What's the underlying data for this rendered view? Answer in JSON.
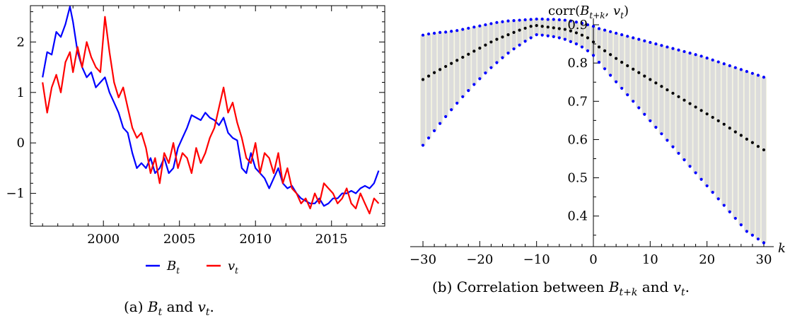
{
  "chart_data": [
    {
      "type": "line",
      "caption": "(a) B_t and v_t.",
      "x_ticks": [
        2000,
        2005,
        2010,
        2015
      ],
      "y_ticks": [
        -1,
        0,
        1,
        2
      ],
      "xlim": [
        1995.2,
        2018.5
      ],
      "ylim": [
        -1.65,
        2.72
      ],
      "legend": {
        "position": "bottom-center",
        "entries": [
          "B_t",
          "v_t"
        ]
      },
      "series": [
        {
          "name": "B_t",
          "color": "#0000ff",
          "x": [
            1996.0,
            1996.3,
            1996.6,
            1996.9,
            1997.2,
            1997.5,
            1997.8,
            1998.0,
            1998.3,
            1998.6,
            1998.9,
            1999.2,
            1999.5,
            1999.8,
            2000.1,
            2000.4,
            2000.7,
            2001.0,
            2001.3,
            2001.6,
            2001.9,
            2002.2,
            2002.5,
            2002.8,
            2003.1,
            2003.4,
            2003.7,
            2004.0,
            2004.3,
            2004.6,
            2004.9,
            2005.2,
            2005.5,
            2005.8,
            2006.1,
            2006.4,
            2006.7,
            2007.0,
            2007.3,
            2007.6,
            2007.9,
            2008.2,
            2008.5,
            2008.8,
            2009.1,
            2009.4,
            2009.7,
            2010.0,
            2010.3,
            2010.6,
            2010.9,
            2011.2,
            2011.5,
            2011.8,
            2012.1,
            2012.4,
            2012.7,
            2013.0,
            2013.3,
            2013.6,
            2013.9,
            2014.2,
            2014.5,
            2014.8,
            2015.1,
            2015.4,
            2015.7,
            2016.0,
            2016.3,
            2016.6,
            2016.9,
            2017.2,
            2017.5,
            2017.8,
            2018.1
          ],
          "y": [
            1.3,
            1.8,
            1.75,
            2.2,
            2.1,
            2.35,
            2.7,
            2.4,
            1.8,
            1.5,
            1.3,
            1.4,
            1.1,
            1.2,
            1.3,
            1.0,
            0.8,
            0.6,
            0.3,
            0.2,
            -0.2,
            -0.5,
            -0.4,
            -0.5,
            -0.3,
            -0.6,
            -0.5,
            -0.3,
            -0.6,
            -0.5,
            -0.1,
            0.1,
            0.3,
            0.55,
            0.5,
            0.45,
            0.6,
            0.5,
            0.45,
            0.35,
            0.5,
            0.2,
            0.1,
            0.05,
            -0.5,
            -0.6,
            -0.2,
            -0.5,
            -0.6,
            -0.7,
            -0.9,
            -0.7,
            -0.5,
            -0.8,
            -0.9,
            -0.85,
            -1.0,
            -1.1,
            -1.15,
            -1.2,
            -1.2,
            -1.1,
            -1.25,
            -1.2,
            -1.1,
            -1.1,
            -1.0,
            -1.0,
            -0.95,
            -1.0,
            -0.9,
            -0.85,
            -0.9,
            -0.8,
            -0.55
          ]
        },
        {
          "name": "v_t",
          "color": "#ff0000",
          "x": [
            1996.0,
            1996.3,
            1996.6,
            1996.9,
            1997.2,
            1997.5,
            1997.8,
            1998.0,
            1998.3,
            1998.6,
            1998.9,
            1999.2,
            1999.5,
            1999.8,
            2000.1,
            2000.4,
            2000.7,
            2001.0,
            2001.3,
            2001.6,
            2001.9,
            2002.2,
            2002.5,
            2002.8,
            2003.1,
            2003.4,
            2003.7,
            2004.0,
            2004.3,
            2004.6,
            2004.9,
            2005.2,
            2005.5,
            2005.8,
            2006.1,
            2006.4,
            2006.7,
            2007.0,
            2007.3,
            2007.6,
            2007.9,
            2008.2,
            2008.5,
            2008.8,
            2009.1,
            2009.4,
            2009.7,
            2010.0,
            2010.3,
            2010.6,
            2010.9,
            2011.2,
            2011.5,
            2011.8,
            2012.1,
            2012.4,
            2012.7,
            2013.0,
            2013.3,
            2013.6,
            2013.9,
            2014.2,
            2014.5,
            2014.8,
            2015.1,
            2015.4,
            2015.7,
            2016.0,
            2016.3,
            2016.6,
            2016.9,
            2017.2,
            2017.5,
            2017.8,
            2018.1
          ],
          "y": [
            1.2,
            0.6,
            1.1,
            1.35,
            1.0,
            1.6,
            1.8,
            1.4,
            1.9,
            1.5,
            2.0,
            1.7,
            1.5,
            1.4,
            2.5,
            1.8,
            1.2,
            0.9,
            1.1,
            0.7,
            0.3,
            0.1,
            0.2,
            -0.1,
            -0.6,
            -0.3,
            -0.8,
            -0.2,
            -0.4,
            0.0,
            -0.5,
            -0.2,
            -0.3,
            -0.6,
            -0.1,
            -0.4,
            -0.2,
            0.1,
            0.3,
            0.7,
            1.1,
            0.6,
            0.8,
            0.4,
            0.1,
            -0.3,
            -0.4,
            0.0,
            -0.6,
            -0.2,
            -0.3,
            -0.6,
            -0.2,
            -0.8,
            -0.5,
            -0.9,
            -1.0,
            -1.2,
            -1.1,
            -1.3,
            -1.0,
            -1.2,
            -0.8,
            -0.9,
            -1.0,
            -1.2,
            -1.1,
            -0.9,
            -1.2,
            -1.3,
            -1.0,
            -1.2,
            -1.4,
            -1.1,
            -1.2
          ]
        }
      ]
    },
    {
      "type": "scatter",
      "caption": "(b) Correlation between B_{t+k} and v_t.",
      "ylabel": "corr(B_{t+k}, v_t)",
      "xlabel": "k",
      "x_ticks": [
        -30,
        -20,
        -10,
        0,
        10,
        20,
        30
      ],
      "y_ticks": [
        0.4,
        0.5,
        0.6,
        0.7,
        0.8,
        0.9
      ],
      "xlim": [
        -31,
        31
      ],
      "ylim": [
        0.32,
        0.95
      ],
      "k": [
        -30,
        -29,
        -28,
        -27,
        -26,
        -25,
        -24,
        -23,
        -22,
        -21,
        -20,
        -19,
        -18,
        -17,
        -16,
        -15,
        -14,
        -13,
        -12,
        -11,
        -10,
        -9,
        -8,
        -7,
        -6,
        -5,
        -4,
        -3,
        -2,
        -1,
        0,
        1,
        2,
        3,
        4,
        5,
        6,
        7,
        8,
        9,
        10,
        11,
        12,
        13,
        14,
        15,
        16,
        17,
        18,
        19,
        20,
        21,
        22,
        23,
        24,
        25,
        26,
        27,
        28,
        29,
        30
      ],
      "point_estimate": [
        0.757,
        0.766,
        0.775,
        0.783,
        0.791,
        0.799,
        0.807,
        0.815,
        0.823,
        0.831,
        0.839,
        0.847,
        0.855,
        0.862,
        0.868,
        0.874,
        0.88,
        0.886,
        0.891,
        0.896,
        0.898,
        0.896,
        0.894,
        0.892,
        0.89,
        0.888,
        0.884,
        0.879,
        0.873,
        0.866,
        0.855,
        0.842,
        0.832,
        0.822,
        0.812,
        0.802,
        0.793,
        0.784,
        0.775,
        0.766,
        0.757,
        0.748,
        0.739,
        0.73,
        0.721,
        0.712,
        0.703,
        0.694,
        0.685,
        0.676,
        0.667,
        0.658,
        0.649,
        0.64,
        0.63,
        0.62,
        0.611,
        0.601,
        0.592,
        0.582,
        0.573
      ],
      "upper_bound": [
        0.873,
        0.876,
        0.878,
        0.88,
        0.881,
        0.883,
        0.885,
        0.888,
        0.891,
        0.894,
        0.897,
        0.9,
        0.903,
        0.906,
        0.908,
        0.91,
        0.911,
        0.912,
        0.913,
        0.914,
        0.915,
        0.915,
        0.914,
        0.914,
        0.913,
        0.912,
        0.91,
        0.907,
        0.904,
        0.9,
        0.896,
        0.89,
        0.886,
        0.882,
        0.878,
        0.874,
        0.87,
        0.866,
        0.862,
        0.858,
        0.854,
        0.85,
        0.846,
        0.842,
        0.838,
        0.834,
        0.83,
        0.826,
        0.822,
        0.818,
        0.813,
        0.808,
        0.803,
        0.798,
        0.793,
        0.788,
        0.783,
        0.778,
        0.773,
        0.768,
        0.763
      ],
      "lower_bound": [
        0.585,
        0.604,
        0.623,
        0.642,
        0.66,
        0.678,
        0.695,
        0.712,
        0.728,
        0.744,
        0.759,
        0.774,
        0.788,
        0.801,
        0.814,
        0.826,
        0.837,
        0.847,
        0.857,
        0.866,
        0.874,
        0.873,
        0.871,
        0.869,
        0.866,
        0.862,
        0.856,
        0.85,
        0.842,
        0.832,
        0.82,
        0.802,
        0.785,
        0.768,
        0.751,
        0.734,
        0.717,
        0.7,
        0.683,
        0.666,
        0.649,
        0.632,
        0.615,
        0.598,
        0.581,
        0.564,
        0.547,
        0.53,
        0.513,
        0.496,
        0.479,
        0.462,
        0.445,
        0.428,
        0.411,
        0.394,
        0.377,
        0.36,
        0.35,
        0.34,
        0.33
      ],
      "colors": {
        "point_estimate": "#000000",
        "bounds": "#0000ff",
        "band": "#dcdcdc"
      }
    }
  ]
}
